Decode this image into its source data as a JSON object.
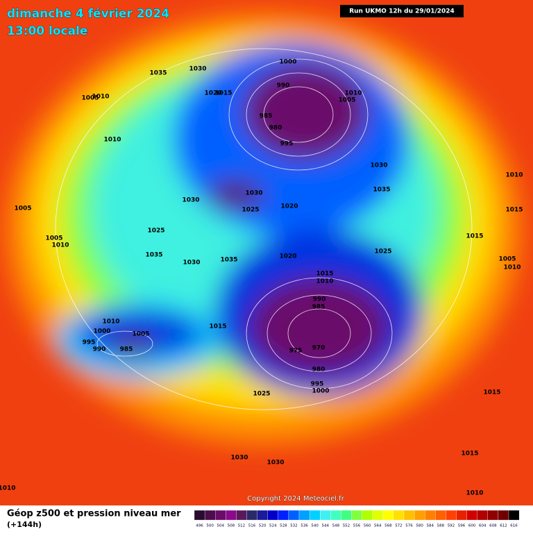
{
  "header": {
    "date": "dimanche 4 février 2024",
    "time": "13:00 locale",
    "run": "Run UKMO 12h du 29/01/2024"
  },
  "copyright": "Copyright 2024 Meteociel.fr",
  "footer": {
    "title": "Géop z500 et pression niveau mer",
    "lead": "(+144h)"
  },
  "pressure_labels": [
    1035,
    1030,
    1000,
    990,
    1010,
    1005,
    1010,
    1005,
    1020,
    1015,
    985,
    980,
    995,
    1010,
    1030,
    1035,
    1030,
    1030,
    1025,
    1020,
    1010,
    1005,
    1015,
    1025,
    1015,
    1005,
    1010,
    1035,
    1035,
    1030,
    1020,
    1025,
    1015,
    1010,
    1005,
    1010,
    990,
    985,
    1010,
    1000,
    1005,
    1015,
    995,
    990,
    985,
    975,
    970,
    980,
    995,
    1000,
    1025,
    1015,
    1030,
    1030,
    1015,
    1010,
    1010
  ],
  "legend": {
    "values": [
      496,
      500,
      504,
      508,
      512,
      516,
      520,
      524,
      528,
      532,
      536,
      540,
      544,
      548,
      552,
      556,
      560,
      564,
      568,
      572,
      576,
      580,
      584,
      588,
      592,
      596,
      600,
      604,
      608,
      612,
      616
    ],
    "colors": [
      "#2a0a2e",
      "#4b0e4b",
      "#6a0d6a",
      "#8a0a8a",
      "#5a1a5a",
      "#2a2a6a",
      "#1a1a9a",
      "#0000c8",
      "#0020ff",
      "#0060ff",
      "#00a0ff",
      "#00d0ff",
      "#40f0f0",
      "#40ffc0",
      "#40ff80",
      "#80ff40",
      "#b0ff00",
      "#e0ff00",
      "#ffff00",
      "#ffe000",
      "#ffc000",
      "#ffa000",
      "#ff8000",
      "#ff6000",
      "#ff4000",
      "#e82000",
      "#d00000",
      "#b00000",
      "#900000",
      "#700000",
      "#000000"
    ]
  }
}
